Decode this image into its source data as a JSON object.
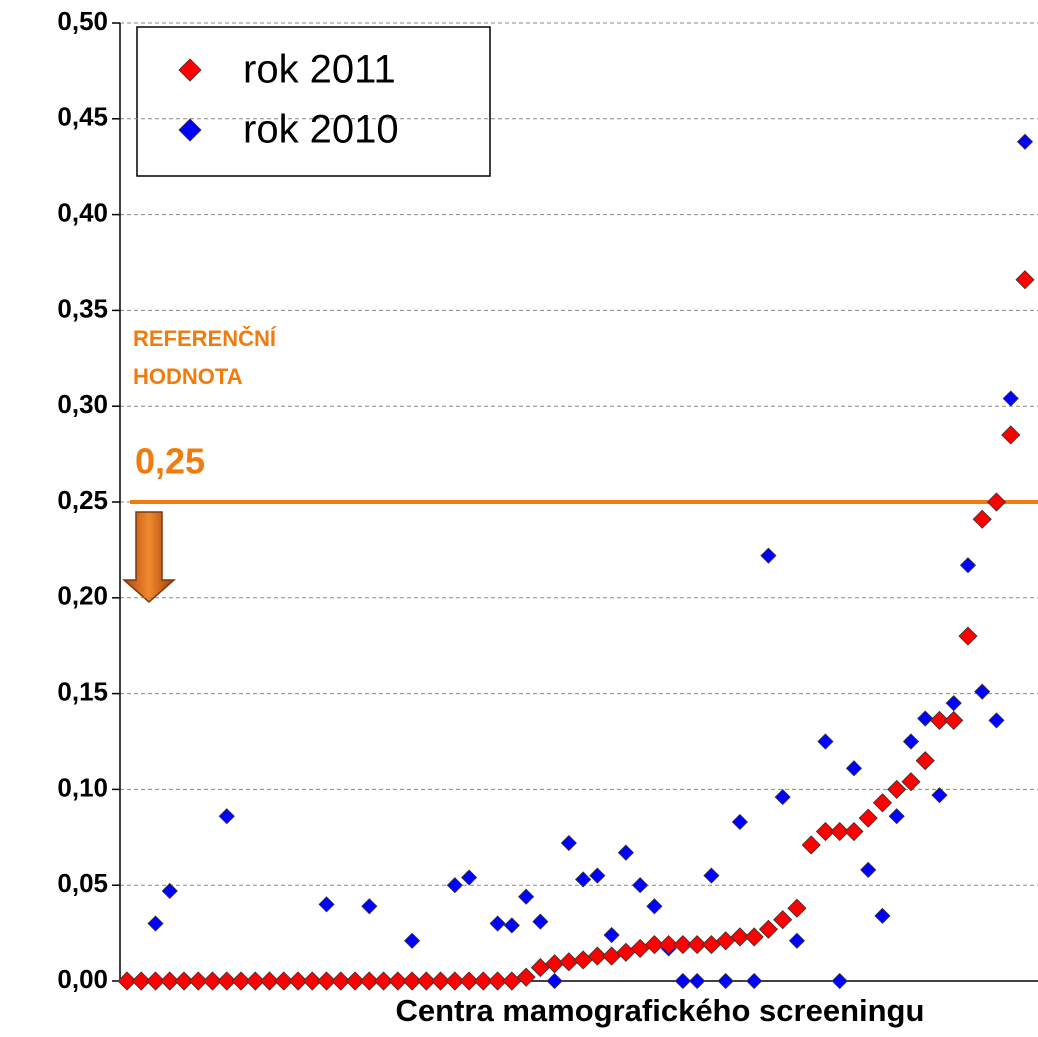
{
  "chart_data": {
    "type": "scatter",
    "x_label": "Centra mamografického screeningu",
    "categories": [
      null,
      null,
      null,
      null,
      null,
      null,
      null,
      null,
      null,
      null,
      null,
      null,
      null,
      null,
      null,
      null,
      null,
      null,
      null,
      null,
      null,
      null,
      null,
      null,
      null,
      null,
      null,
      null,
      null,
      null,
      null,
      null,
      null,
      null,
      null,
      null,
      null,
      null,
      null,
      null,
      null,
      null,
      null,
      null,
      null,
      null,
      null,
      null,
      null,
      null,
      null,
      null,
      null,
      null,
      null,
      null,
      null,
      null,
      null,
      null,
      null,
      null,
      null,
      null
    ],
    "series": [
      {
        "name": "rok 2011",
        "color": "#ff0000",
        "values": [
          0,
          0,
          0,
          0,
          0,
          0,
          0,
          0,
          0,
          0,
          0,
          0,
          0,
          0,
          0,
          0,
          0,
          0,
          0,
          0,
          0,
          0,
          0,
          0,
          0,
          0,
          0,
          0,
          0.002,
          0.007,
          0.009,
          0.01,
          0.011,
          0.013,
          0.013,
          0.015,
          0.017,
          0.019,
          0.019,
          0.019,
          0.019,
          0.019,
          0.021,
          0.023,
          0.023,
          0.027,
          0.032,
          0.038,
          0.071,
          0.078,
          0.078,
          0.078,
          0.085,
          0.093,
          0.1,
          0.104,
          0.115,
          0.136,
          0.136,
          0.18,
          0.241,
          0.25,
          0.285,
          0.366
        ]
      },
      {
        "name": "rok 2010",
        "color": "#0000ff",
        "values": [
          null,
          null,
          0.03,
          0.047,
          null,
          null,
          null,
          0.086,
          null,
          null,
          null,
          null,
          null,
          null,
          0.04,
          null,
          null,
          0.039,
          null,
          null,
          0.021,
          null,
          null,
          0.05,
          0.054,
          null,
          0.03,
          0.029,
          0.044,
          0.031,
          0,
          0.072,
          0.053,
          0.055,
          0.024,
          0.067,
          0.05,
          0.039,
          0.017,
          0,
          0,
          0.055,
          0,
          0.083,
          0,
          0.222,
          0.096,
          0.021,
          null,
          0.125,
          0,
          0.111,
          0.058,
          0.034,
          0.086,
          0.125,
          0.137,
          0.097,
          0.145,
          0.217,
          0.151,
          0.136,
          0.304,
          0.438
        ]
      }
    ],
    "ylim": [
      0,
      0.5
    ],
    "yticks": [
      {
        "value": 0,
        "label": "0,00"
      },
      {
        "value": 0.05,
        "label": "0,05"
      },
      {
        "value": 0.1,
        "label": "0,10"
      },
      {
        "value": 0.15,
        "label": "0,15"
      },
      {
        "value": 0.2,
        "label": "0,20"
      },
      {
        "value": 0.25,
        "label": "0,25"
      },
      {
        "value": 0.3,
        "label": "0,30"
      },
      {
        "value": 0.35,
        "label": "0,35"
      },
      {
        "value": 0.4,
        "label": "0,40"
      },
      {
        "value": 0.45,
        "label": "0,45"
      },
      {
        "value": 0.5,
        "label": "0,50"
      }
    ],
    "grid": true,
    "legend": "upper left",
    "reference": {
      "value": 0.25,
      "label": "0,25",
      "text": [
        "REFERENČNÍ",
        "HODNOTA"
      ],
      "color": "#f07c10"
    }
  }
}
